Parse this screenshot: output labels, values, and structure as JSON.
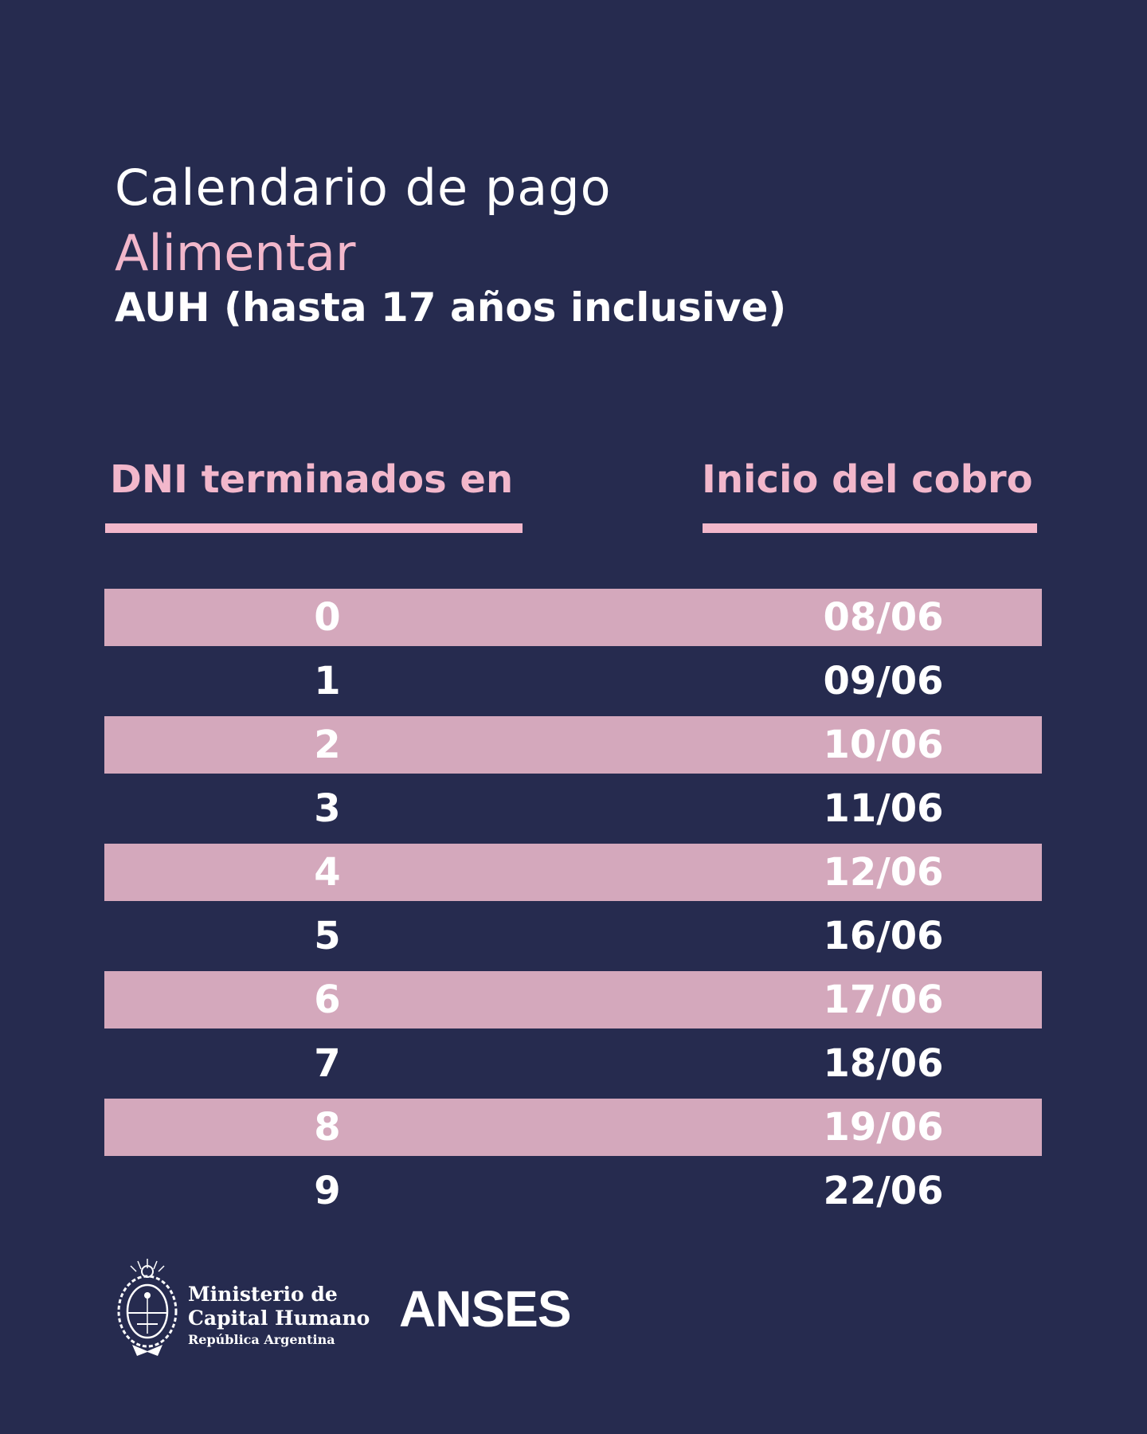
{
  "header": {
    "title": "Calendario de pago",
    "program": "Alimentar",
    "subtitle": "AUH (hasta 17 años inclusive)"
  },
  "table": {
    "col_dni": "DNI terminados en",
    "col_fecha": "Inicio del cobro",
    "rows": [
      {
        "dni": "0",
        "fecha": "08/06"
      },
      {
        "dni": "1",
        "fecha": "09/06"
      },
      {
        "dni": "2",
        "fecha": "10/06"
      },
      {
        "dni": "3",
        "fecha": "11/06"
      },
      {
        "dni": "4",
        "fecha": "12/06"
      },
      {
        "dni": "5",
        "fecha": "16/06"
      },
      {
        "dni": "6",
        "fecha": "17/06"
      },
      {
        "dni": "7",
        "fecha": "18/06"
      },
      {
        "dni": "8",
        "fecha": "19/06"
      },
      {
        "dni": "9",
        "fecha": "22/06"
      }
    ]
  },
  "footer": {
    "ministry_line1": "Ministerio de",
    "ministry_line2": "Capital Humano",
    "ministry_line3": "República Argentina",
    "anses": "ANSES",
    "crest_icon": "argentina-coat-of-arms-icon"
  },
  "colors": {
    "background": "#262b4f",
    "accent_pink": "#f2b7cb",
    "row_shade": "#d4a8bc",
    "text": "#ffffff"
  }
}
